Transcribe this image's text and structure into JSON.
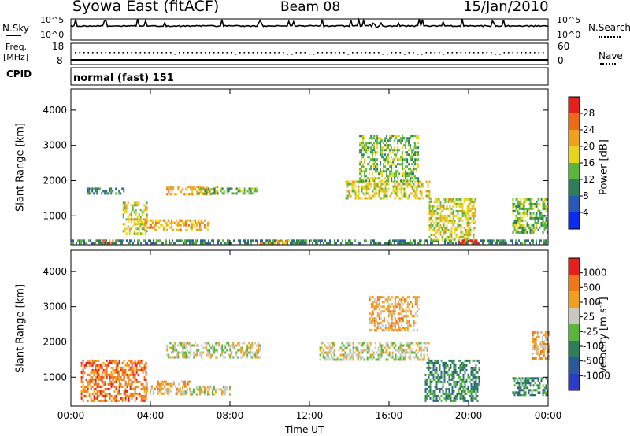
{
  "header": {
    "station": "Syowa East (fitACF)",
    "beam": "Beam 08",
    "date": "15/Jan/2010"
  },
  "top_panels": {
    "nsky_label": "N.Sky",
    "nsky_ticks": [
      "10^5",
      "10^0"
    ],
    "nsearch_label": "N.Search",
    "nsearch_ticks": [
      "10^5",
      "10^0"
    ],
    "freq_label": "Freq.",
    "freq_unit": "[MHz]",
    "freq_ticks": [
      "18",
      "8"
    ],
    "nave_label": "Nave",
    "nave_ticks": [
      "60",
      "0"
    ],
    "cpid_label": "CPID",
    "cpid_value": "normal (fast) 151"
  },
  "chart_data": [
    {
      "type": "heatmap",
      "name": "power",
      "ylabel": "Slant Range [km]",
      "xlabel": "Time UT",
      "x_ticks": [
        "00:00",
        "04:00",
        "08:00",
        "12:00",
        "16:00",
        "20:00",
        "00:00"
      ],
      "xlim_hours": [
        0,
        24
      ],
      "y_ticks": [
        1000,
        2000,
        3000,
        4000
      ],
      "ylim": [
        180,
        4600
      ],
      "colorbar": {
        "label": "Power [dB]",
        "ticks": [
          "4",
          "8",
          "12",
          "16",
          "20",
          "24",
          "28"
        ],
        "colors": [
          "#0a2cf0",
          "#2a58b8",
          "#2d7f5a",
          "#5ab53c",
          "#e6d51a",
          "#f0a01a",
          "#f06a14",
          "#e6201a"
        ]
      },
      "echo_regions": [
        {
          "t0": 0.0,
          "t1": 24.0,
          "r0": 230,
          "r1": 330,
          "level": 2
        },
        {
          "t0": 0.8,
          "t1": 2.8,
          "r0": 1600,
          "r1": 1800,
          "level": 2
        },
        {
          "t0": 2.6,
          "t1": 3.8,
          "r0": 500,
          "r1": 1400,
          "level": 4
        },
        {
          "t0": 3.6,
          "t1": 7.0,
          "r0": 580,
          "r1": 900,
          "level": 5
        },
        {
          "t0": 4.8,
          "t1": 7.4,
          "r0": 1600,
          "r1": 1850,
          "level": 5
        },
        {
          "t0": 6.4,
          "t1": 9.4,
          "r0": 1650,
          "r1": 1800,
          "level": 3
        },
        {
          "t0": 1.2,
          "t1": 2.4,
          "r0": 250,
          "r1": 330,
          "level": 6
        },
        {
          "t0": 9.5,
          "t1": 11.0,
          "r0": 240,
          "r1": 320,
          "level": 5
        },
        {
          "t0": 13.8,
          "t1": 18.0,
          "r0": 1500,
          "r1": 2000,
          "level": 4
        },
        {
          "t0": 14.5,
          "t1": 17.5,
          "r0": 2000,
          "r1": 3300,
          "level": 3
        },
        {
          "t0": 18.0,
          "t1": 20.3,
          "r0": 300,
          "r1": 1500,
          "level": 4
        },
        {
          "t0": 19.5,
          "t1": 20.5,
          "r0": 240,
          "r1": 330,
          "level": 7
        },
        {
          "t0": 22.2,
          "t1": 24.0,
          "r0": 500,
          "r1": 1500,
          "level": 3
        }
      ]
    },
    {
      "type": "heatmap",
      "name": "velocity",
      "ylabel": "Slant Range [km]",
      "xlabel": "Time UT",
      "x_ticks": [
        "00:00",
        "04:00",
        "08:00",
        "12:00",
        "16:00",
        "20:00",
        "00:00"
      ],
      "xlim_hours": [
        0,
        24
      ],
      "y_ticks": [
        1000,
        2000,
        3000,
        4000
      ],
      "ylim": [
        180,
        4600
      ],
      "colorbar": {
        "label": "Velocity [m s^-1]",
        "ticks": [
          "1000",
          "500",
          "100",
          "25",
          "-25",
          "-100",
          "-500",
          "-1000"
        ],
        "colors": [
          "#2a3cc8",
          "#2a5a9a",
          "#2d7f5a",
          "#5ab53c",
          "#c8c8c0",
          "#f0a01a",
          "#f07814",
          "#e6201a"
        ]
      },
      "echo_regions": [
        {
          "t0": 0.5,
          "t1": 3.8,
          "r0": 300,
          "r1": 1500,
          "level": 6
        },
        {
          "t0": 3.8,
          "t1": 6.0,
          "r0": 550,
          "r1": 900,
          "level": 5
        },
        {
          "t0": 4.8,
          "t1": 9.5,
          "r0": 1550,
          "r1": 2000,
          "level": 4
        },
        {
          "t0": 5.5,
          "t1": 8.0,
          "r0": 500,
          "r1": 750,
          "level": 4
        },
        {
          "t0": 12.5,
          "t1": 18.0,
          "r0": 1500,
          "r1": 2000,
          "level": 4
        },
        {
          "t0": 15.0,
          "t1": 17.5,
          "r0": 2300,
          "r1": 3300,
          "level": 5
        },
        {
          "t0": 17.8,
          "t1": 20.5,
          "r0": 300,
          "r1": 1500,
          "level": 2
        },
        {
          "t0": 22.2,
          "t1": 24.0,
          "r0": 500,
          "r1": 1000,
          "level": 2
        },
        {
          "t0": 23.2,
          "t1": 24.0,
          "r0": 1500,
          "r1": 2300,
          "level": 5
        }
      ]
    }
  ]
}
